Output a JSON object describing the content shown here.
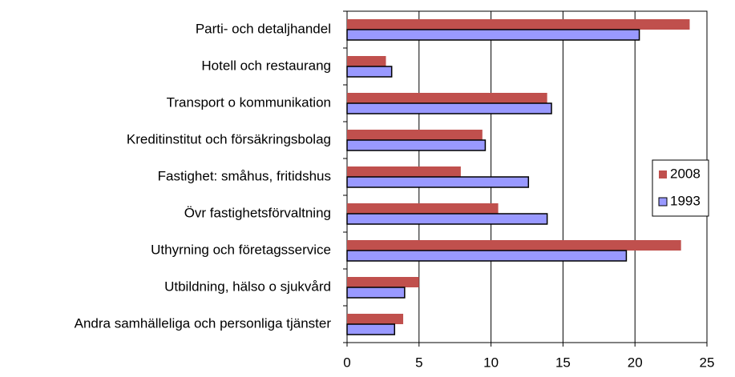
{
  "chart_data": {
    "type": "bar",
    "orientation": "horizontal",
    "categories": [
      "Parti- och detaljhandel",
      "Hotell och restaurang",
      "Transport o kommunikation",
      "Kreditinstitut och försäkringsbolag",
      "Fastighet: småhus, fritidshus",
      "Övr fastighetsförvaltning",
      "Uthyrning och företagsservice",
      "Utbildning, hälso o sjukvård",
      "Andra samhälleliga och personliga tjänster"
    ],
    "series": [
      {
        "name": "2008",
        "color": "#c0504d",
        "values": [
          23.8,
          2.7,
          13.9,
          9.4,
          7.9,
          10.5,
          23.2,
          5.0,
          3.9
        ]
      },
      {
        "name": "1993",
        "color": "#9999ff",
        "values": [
          20.3,
          3.1,
          14.2,
          9.6,
          12.6,
          13.9,
          19.4,
          4.0,
          3.3
        ]
      }
    ],
    "xlim": [
      0,
      25
    ],
    "xticks": [
      0,
      5,
      10,
      15,
      20,
      25
    ],
    "grid": true,
    "legend": "right"
  }
}
